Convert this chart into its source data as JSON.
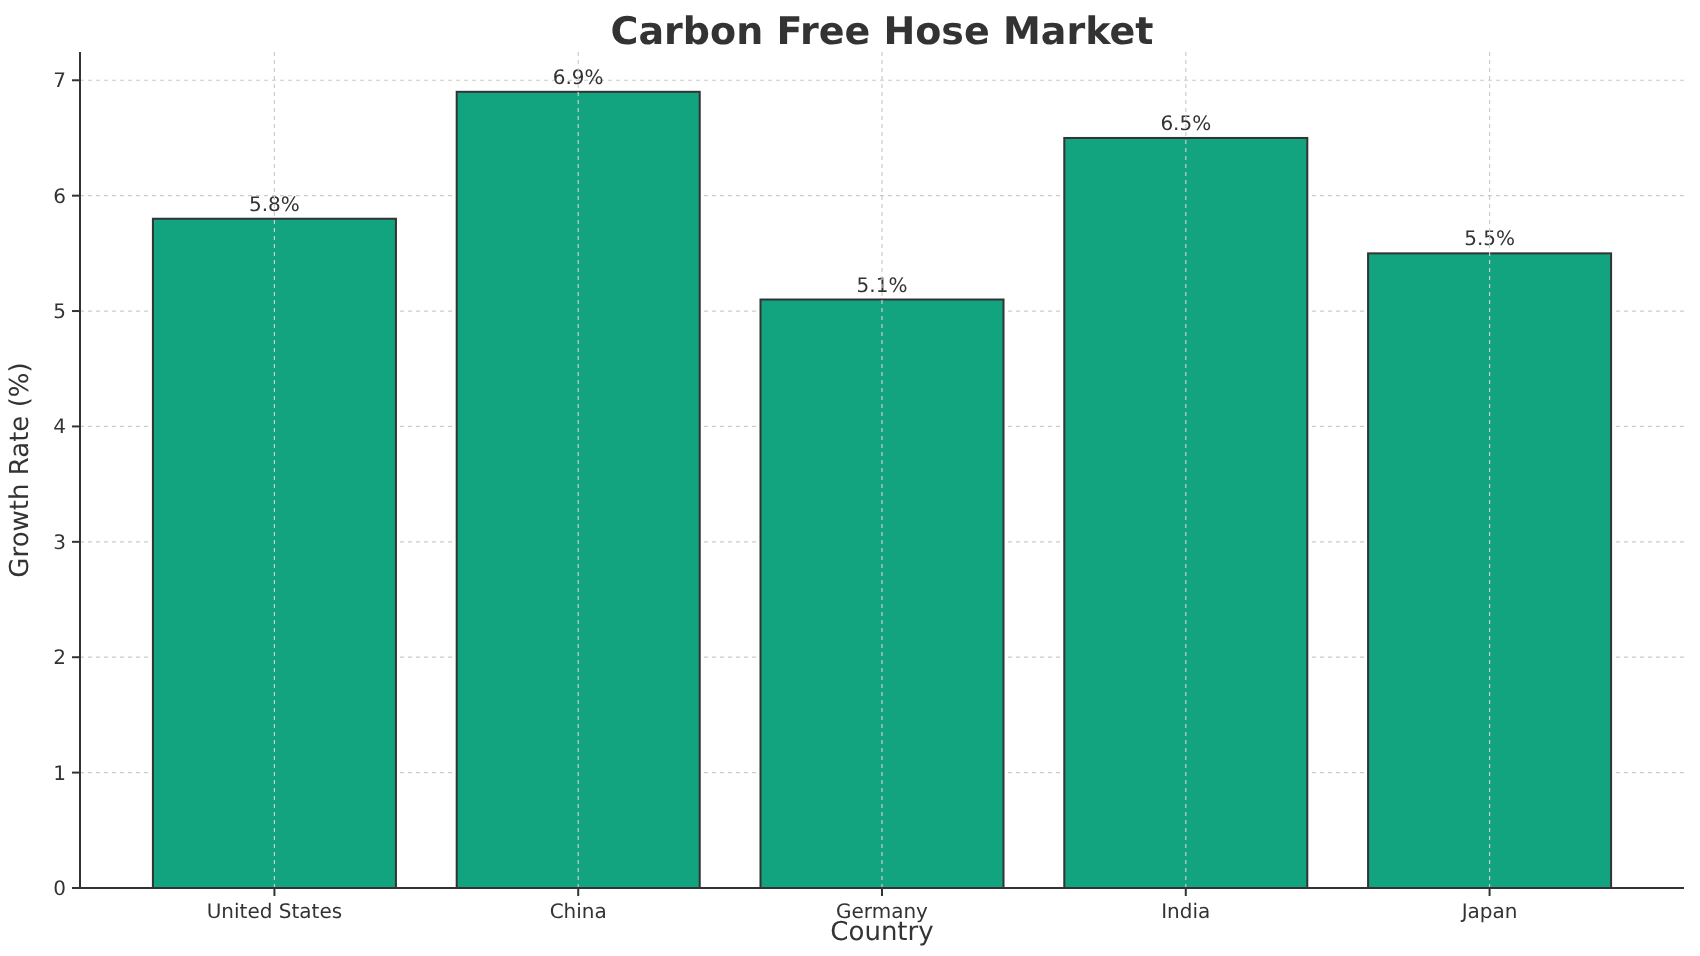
{
  "chart_data": {
    "type": "bar",
    "title": "Carbon Free Hose Market",
    "xlabel": "Country",
    "ylabel": "Growth Rate (%)",
    "categories": [
      "United States",
      "China",
      "Germany",
      "India",
      "Japan"
    ],
    "values": [
      5.8,
      6.9,
      5.1,
      6.5,
      5.5
    ],
    "value_labels": [
      "5.8%",
      "6.9%",
      "5.1%",
      "6.5%",
      "5.5%"
    ],
    "color": "#12a37f",
    "ylim": [
      0,
      7.245
    ],
    "yticks": [
      0,
      1,
      2,
      3,
      4,
      5,
      6,
      7
    ],
    "grid": true
  }
}
